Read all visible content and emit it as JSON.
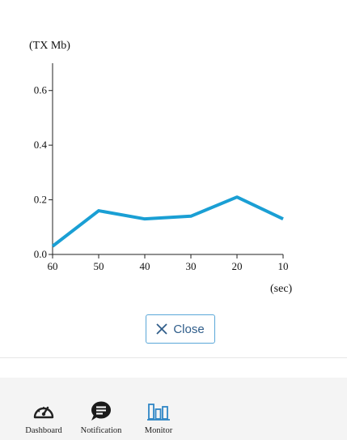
{
  "chart_data": {
    "type": "line",
    "ylabel": "(TX Mb)",
    "xlabel": "(sec)",
    "x": [
      60,
      50,
      40,
      30,
      20,
      10
    ],
    "y": [
      0.03,
      0.16,
      0.13,
      0.14,
      0.21,
      0.13
    ],
    "xlim": [
      60,
      10
    ],
    "ylim": [
      0,
      0.7
    ],
    "yticks": [
      0.0,
      0.2,
      0.4,
      0.6
    ],
    "ytick_labels": [
      "0.0",
      "0.2",
      "0.4",
      "0.6"
    ],
    "xticks": [
      60,
      50,
      40,
      30,
      20,
      10
    ],
    "xtick_labels": [
      "60",
      "50",
      "40",
      "30",
      "20",
      "10"
    ],
    "line_color": "#1a9fd4",
    "grid": false
  },
  "dialog": {
    "close_label": "Close",
    "close_icon": "x-icon"
  },
  "tabbar": {
    "tabs": [
      {
        "id": "dashboard",
        "label": "Dashboard",
        "icon": "gauge-icon"
      },
      {
        "id": "notification",
        "label": "Notification",
        "icon": "chat-bubble-icon"
      },
      {
        "id": "monitor",
        "label": "Monitor",
        "icon": "bar-chart-icon",
        "active": true
      }
    ],
    "active_color": "#2f86c5"
  }
}
